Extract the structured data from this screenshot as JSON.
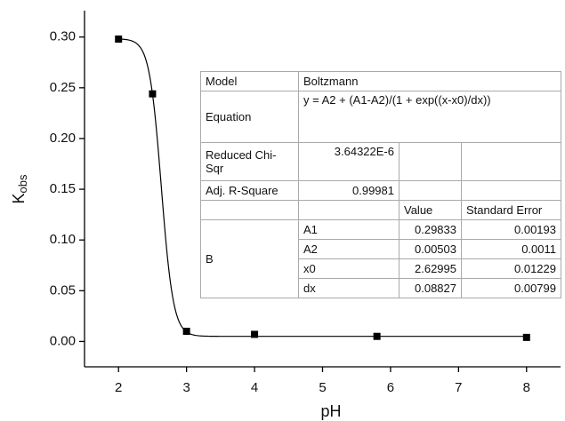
{
  "chart_data": {
    "type": "scatter",
    "xlabel": "pH",
    "ylabel": "K",
    "ylabel_sub": "obs",
    "x": [
      2,
      2.5,
      3,
      4,
      5.8,
      8
    ],
    "values": [
      0.298,
      0.244,
      0.01,
      0.007,
      0.005,
      0.004
    ],
    "color": "#000000",
    "xlim": [
      1.5,
      8.5
    ],
    "xticks": [
      2,
      3,
      4,
      5,
      6,
      7,
      8
    ],
    "ylim": [
      -0.025,
      0.326
    ],
    "yticks": [
      {
        "value": 0,
        "label": "0.00"
      },
      {
        "value": 0.05,
        "label": "0.05"
      },
      {
        "value": 0.1,
        "label": "0.10"
      },
      {
        "value": 0.15,
        "label": "0.15"
      },
      {
        "value": 0.2,
        "label": "0.20"
      },
      {
        "value": 0.25,
        "label": "0.25"
      },
      {
        "value": 0.3,
        "label": "0.30"
      }
    ],
    "table": {
      "stats": [
        [
          "Model",
          "Boltzmann"
        ],
        [
          "Equation",
          "y = A2 + (A1-A2)/(1 + exp((x-x0)/dx))"
        ],
        [
          "Reduced Chi-Sqr",
          "3.64322E-6"
        ],
        [
          "Adj. R-Square",
          0.99981
        ]
      ],
      "columns": [
        "Value",
        "Standard Error"
      ],
      "group": "B",
      "params": [
        [
          "A1",
          0.29833,
          0.00193
        ],
        [
          "A2",
          0.00503,
          0.0011
        ],
        [
          "x0",
          2.62995,
          0.01229
        ],
        [
          "dx",
          0.08827,
          0.00799
        ]
      ]
    }
  }
}
